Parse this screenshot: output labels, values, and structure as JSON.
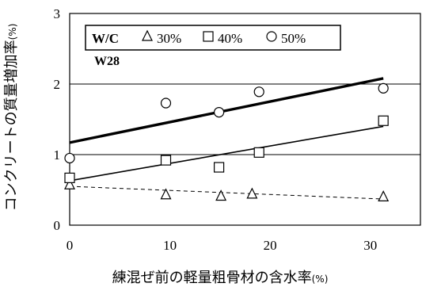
{
  "chart_data": {
    "type": "scatter",
    "xlabel": "練混ぜ前の軽量粗骨材の含水率",
    "xlabel_unit": "(%)",
    "ylabel": "コンクリートの質量増加率",
    "ylabel_unit": "(%)",
    "xlim": [
      0,
      35
    ],
    "ylim": [
      0,
      3
    ],
    "x_ticks": [
      "0",
      "10",
      "20",
      "30"
    ],
    "y_ticks": [
      "0",
      "1",
      "2",
      "3"
    ],
    "grid": "horizontal",
    "legend": {
      "placement": "top-left",
      "title": "W/C",
      "entries": [
        "30%",
        "40%",
        "50%"
      ]
    },
    "annotation": "W28",
    "series": [
      {
        "name": "30%",
        "marker": "triangle",
        "points": [
          [
            0.0,
            0.57
          ],
          [
            9.6,
            0.43
          ],
          [
            15.1,
            0.41
          ],
          [
            18.2,
            0.44
          ],
          [
            31.3,
            0.4
          ]
        ],
        "trend": {
          "style": "dashed",
          "x": [
            0,
            31.3
          ],
          "y": [
            0.55,
            0.37
          ]
        }
      },
      {
        "name": "40%",
        "marker": "square",
        "points": [
          [
            0.0,
            0.67
          ],
          [
            9.6,
            0.92
          ],
          [
            14.9,
            0.82
          ],
          [
            18.9,
            1.03
          ],
          [
            31.3,
            1.48
          ]
        ],
        "trend": {
          "style": "solid-thin",
          "x": [
            0,
            31.3
          ],
          "y": [
            0.63,
            1.4
          ]
        }
      },
      {
        "name": "50%",
        "marker": "circle",
        "points": [
          [
            0.0,
            0.95
          ],
          [
            9.6,
            1.73
          ],
          [
            14.9,
            1.6
          ],
          [
            18.9,
            1.89
          ],
          [
            31.3,
            1.94
          ]
        ],
        "trend": {
          "style": "solid-thick",
          "x": [
            0,
            31.3
          ],
          "y": [
            1.17,
            2.08
          ]
        }
      }
    ]
  }
}
